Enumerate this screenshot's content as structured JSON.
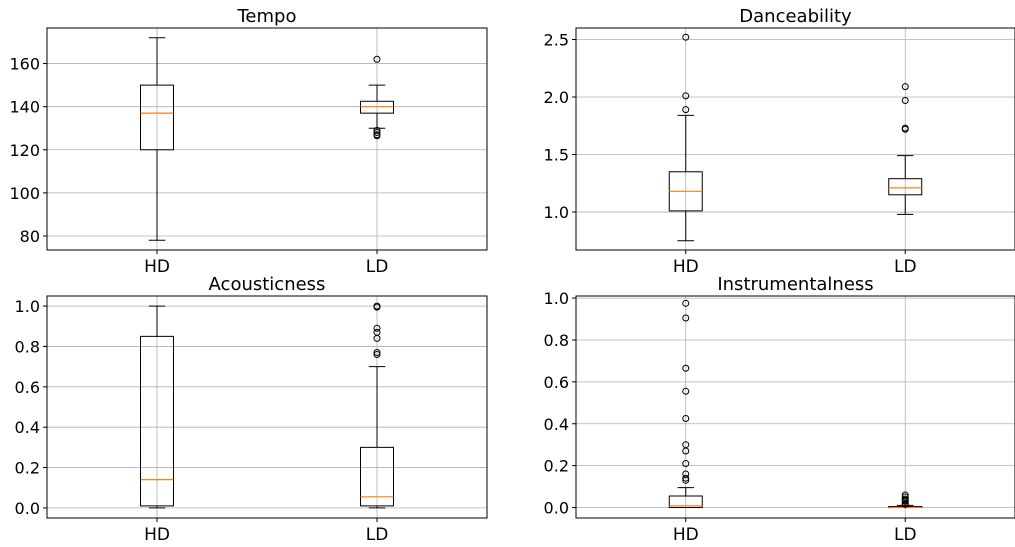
{
  "chart_data": [
    {
      "type": "box",
      "title": "Tempo",
      "categories": [
        "HD",
        "LD"
      ],
      "ylim": [
        73.5,
        176.5
      ],
      "yticks": [
        80,
        100,
        120,
        140,
        160
      ],
      "grid": true,
      "boxes": [
        {
          "name": "HD",
          "whislo": 78,
          "q1": 120,
          "med": 137,
          "q3": 150,
          "whishi": 172,
          "fliers": []
        },
        {
          "name": "LD",
          "whislo": 130,
          "q1": 137,
          "med": 140,
          "q3": 142.5,
          "whishi": 150,
          "fliers": [
            162,
            129,
            128,
            127,
            126.5
          ]
        }
      ]
    },
    {
      "type": "box",
      "title": "Danceability",
      "categories": [
        "HD",
        "LD"
      ],
      "ylim": [
        0.67,
        2.6
      ],
      "yticks": [
        1.0,
        1.5,
        2.0,
        2.5
      ],
      "grid": true,
      "boxes": [
        {
          "name": "HD",
          "whislo": 0.75,
          "q1": 1.01,
          "med": 1.18,
          "q3": 1.35,
          "whishi": 1.84,
          "fliers": [
            2.52,
            2.01,
            1.89
          ]
        },
        {
          "name": "LD",
          "whislo": 0.98,
          "q1": 1.15,
          "med": 1.21,
          "q3": 1.29,
          "whishi": 1.49,
          "fliers": [
            2.09,
            1.97,
            1.72,
            1.73
          ]
        }
      ]
    },
    {
      "type": "box",
      "title": "Acousticness",
      "categories": [
        "HD",
        "LD"
      ],
      "ylim": [
        -0.05,
        1.05
      ],
      "yticks": [
        0.0,
        0.2,
        0.4,
        0.6,
        0.8,
        1.0
      ],
      "grid": true,
      "boxes": [
        {
          "name": "HD",
          "whislo": 0.0,
          "q1": 0.01,
          "med": 0.14,
          "q3": 0.85,
          "whishi": 1.0,
          "fliers": []
        },
        {
          "name": "LD",
          "whislo": 0.0,
          "q1": 0.01,
          "med": 0.055,
          "q3": 0.3,
          "whishi": 0.7,
          "fliers": [
            1.0,
            0.995,
            0.89,
            0.87,
            0.84,
            0.77,
            0.76
          ]
        }
      ]
    },
    {
      "type": "box",
      "title": "Instrumentalness",
      "categories": [
        "HD",
        "LD"
      ],
      "ylim": [
        -0.05,
        1.01
      ],
      "yticks": [
        0.0,
        0.2,
        0.4,
        0.6,
        0.8,
        1.0
      ],
      "grid": true,
      "boxes": [
        {
          "name": "HD",
          "whislo": 0.0,
          "q1": 0.0,
          "med": 0.008,
          "q3": 0.055,
          "whishi": 0.095,
          "fliers": [
            0.975,
            0.905,
            0.665,
            0.555,
            0.425,
            0.3,
            0.27,
            0.21,
            0.16,
            0.14,
            0.13
          ]
        },
        {
          "name": "LD",
          "whislo": 0.0,
          "q1": 0.0,
          "med": 0.0,
          "q3": 0.005,
          "whishi": 0.01,
          "fliers": [
            0.06,
            0.05,
            0.04,
            0.035,
            0.03,
            0.02,
            0.015
          ]
        }
      ]
    }
  ]
}
